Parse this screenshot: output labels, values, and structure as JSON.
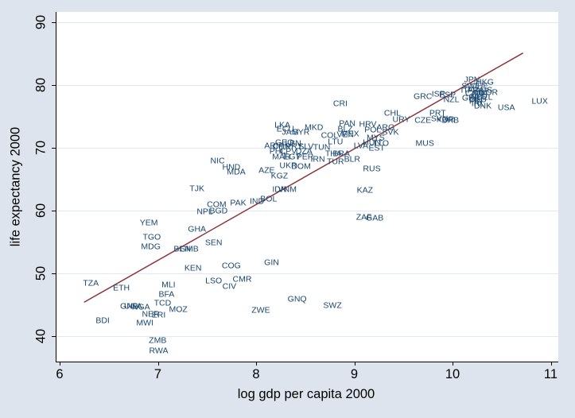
{
  "chart_data": {
    "type": "scatter",
    "title": "",
    "xlabel": "log gdp per capita 2000",
    "ylabel": "life expectancy 2000",
    "xlim": [
      5.96,
      11.07
    ],
    "ylim": [
      35.9,
      91.6
    ],
    "x_ticks": [
      6,
      7,
      8,
      9,
      10,
      11
    ],
    "y_ticks": [
      40,
      50,
      60,
      70,
      80,
      90
    ],
    "grid": "horizontal-only",
    "legend": "none",
    "marker_style": "country-code-text-labels",
    "colors": {
      "background": "#dde4ee",
      "plot_background": "#ffffff",
      "gridline": "#dfe8f5",
      "point_labels": "#1A476F",
      "fit_line": "#90353B",
      "axis": "#000000"
    },
    "fit_line": {
      "x1": 6.24,
      "y1": 45.4,
      "x2": 10.71,
      "y2": 85.1
    },
    "points": [
      {
        "label": "TZA",
        "x": 6.31,
        "y": 48.4
      },
      {
        "label": "ETH",
        "x": 6.62,
        "y": 47.6
      },
      {
        "label": "BDI",
        "x": 6.43,
        "y": 42.4
      },
      {
        "label": "GNB",
        "x": 6.7,
        "y": 44.7
      },
      {
        "label": "UGA",
        "x": 6.74,
        "y": 44.7
      },
      {
        "label": "NGA",
        "x": 6.82,
        "y": 44.6
      },
      {
        "label": "MWI",
        "x": 6.86,
        "y": 42.0
      },
      {
        "label": "ZMB",
        "x": 6.99,
        "y": 39.2
      },
      {
        "label": "RWA",
        "x": 7.0,
        "y": 37.6
      },
      {
        "label": "NER",
        "x": 6.92,
        "y": 43.4
      },
      {
        "label": "ERI",
        "x": 7.0,
        "y": 43.3
      },
      {
        "label": "TCD",
        "x": 7.04,
        "y": 45.2
      },
      {
        "label": "BFA",
        "x": 7.08,
        "y": 46.6
      },
      {
        "label": "MLI",
        "x": 7.1,
        "y": 48.1
      },
      {
        "label": "MOZ",
        "x": 7.2,
        "y": 44.2
      },
      {
        "label": "YEM",
        "x": 6.9,
        "y": 58.0
      },
      {
        "label": "TGO",
        "x": 6.93,
        "y": 55.7
      },
      {
        "label": "MDG",
        "x": 6.92,
        "y": 54.2
      },
      {
        "label": "GHA",
        "x": 7.39,
        "y": 57.0
      },
      {
        "label": "SEN",
        "x": 7.56,
        "y": 54.8
      },
      {
        "label": "BEN",
        "x": 7.24,
        "y": 53.8
      },
      {
        "label": "GMB",
        "x": 7.31,
        "y": 53.8
      },
      {
        "label": "KEN",
        "x": 7.35,
        "y": 50.8
      },
      {
        "label": "COG",
        "x": 7.74,
        "y": 51.1
      },
      {
        "label": "GIN",
        "x": 8.15,
        "y": 51.6
      },
      {
        "label": "LSO",
        "x": 7.56,
        "y": 48.7
      },
      {
        "label": "CMR",
        "x": 7.85,
        "y": 49.0
      },
      {
        "label": "CIV",
        "x": 7.72,
        "y": 47.8
      },
      {
        "label": "ZWE",
        "x": 8.04,
        "y": 44.1
      },
      {
        "label": "GNQ",
        "x": 8.41,
        "y": 45.8
      },
      {
        "label": "SWZ",
        "x": 8.77,
        "y": 44.8
      },
      {
        "label": "COM",
        "x": 7.59,
        "y": 60.9
      },
      {
        "label": "NPL",
        "x": 7.47,
        "y": 59.7
      },
      {
        "label": "BGD",
        "x": 7.61,
        "y": 59.9
      },
      {
        "label": "PAK",
        "x": 7.81,
        "y": 61.2
      },
      {
        "label": "IND",
        "x": 8.0,
        "y": 61.4
      },
      {
        "label": "BOL",
        "x": 8.12,
        "y": 61.8
      },
      {
        "label": "TJK",
        "x": 7.39,
        "y": 63.4
      },
      {
        "label": "NIC",
        "x": 7.6,
        "y": 67.8
      },
      {
        "label": "HND",
        "x": 7.74,
        "y": 66.8
      },
      {
        "label": "MDA",
        "x": 7.79,
        "y": 66.1
      },
      {
        "label": "AZE",
        "x": 8.1,
        "y": 66.3
      },
      {
        "label": "KGZ",
        "x": 8.23,
        "y": 65.4
      },
      {
        "label": "IDN",
        "x": 8.23,
        "y": 63.3
      },
      {
        "label": "VNM",
        "x": 8.31,
        "y": 63.3
      },
      {
        "label": "ARM",
        "x": 8.17,
        "y": 70.3
      },
      {
        "label": "LKA",
        "x": 8.26,
        "y": 73.5
      },
      {
        "label": "ECU",
        "x": 8.29,
        "y": 72.9
      },
      {
        "label": "JAM",
        "x": 8.34,
        "y": 72.4
      },
      {
        "label": "SYR",
        "x": 8.45,
        "y": 72.4
      },
      {
        "label": "MKD",
        "x": 8.58,
        "y": 73.2
      },
      {
        "label": "PAN",
        "x": 8.92,
        "y": 73.8
      },
      {
        "label": "BLZ",
        "x": 8.9,
        "y": 72.9
      },
      {
        "label": "VEN",
        "x": 8.9,
        "y": 72.0
      },
      {
        "label": "GEO",
        "x": 8.28,
        "y": 70.8
      },
      {
        "label": "LBN",
        "x": 8.37,
        "y": 70.6
      },
      {
        "label": "LTU",
        "x": 8.8,
        "y": 70.9
      },
      {
        "label": "CHN",
        "x": 8.25,
        "y": 70.1
      },
      {
        "label": "PRY",
        "x": 8.38,
        "y": 70.1
      },
      {
        "label": "SLV",
        "x": 8.5,
        "y": 70.1
      },
      {
        "label": "TUN",
        "x": 8.66,
        "y": 70.0
      },
      {
        "label": "PHL",
        "x": 8.21,
        "y": 69.4
      },
      {
        "label": "CPV",
        "x": 8.32,
        "y": 69.4
      },
      {
        "label": "DZA",
        "x": 8.48,
        "y": 69.4
      },
      {
        "label": "MAR",
        "x": 8.25,
        "y": 68.5
      },
      {
        "label": "EGY",
        "x": 8.36,
        "y": 68.5
      },
      {
        "label": "PER",
        "x": 8.49,
        "y": 68.5
      },
      {
        "label": "UKR",
        "x": 8.32,
        "y": 67.1
      },
      {
        "label": "DOM",
        "x": 8.45,
        "y": 67.0
      },
      {
        "label": "IRN",
        "x": 8.62,
        "y": 68.1
      },
      {
        "label": "TUR",
        "x": 8.8,
        "y": 67.7
      },
      {
        "label": "THA",
        "x": 8.78,
        "y": 69.0
      },
      {
        "label": "BRA",
        "x": 8.86,
        "y": 69.0
      },
      {
        "label": "COL",
        "x": 8.74,
        "y": 71.9
      },
      {
        "label": "MEX",
        "x": 8.95,
        "y": 72.2
      },
      {
        "label": "LVA",
        "x": 9.06,
        "y": 70.3
      },
      {
        "label": "EST",
        "x": 9.22,
        "y": 69.9
      },
      {
        "label": "BLR",
        "x": 8.97,
        "y": 68.1
      },
      {
        "label": "RUS",
        "x": 9.17,
        "y": 66.6
      },
      {
        "label": "KAZ",
        "x": 9.1,
        "y": 63.2
      },
      {
        "label": "ZAF",
        "x": 9.09,
        "y": 58.9
      },
      {
        "label": "GAB",
        "x": 9.2,
        "y": 58.7
      },
      {
        "label": "CRI",
        "x": 8.85,
        "y": 77.0
      },
      {
        "label": "CHL",
        "x": 9.38,
        "y": 75.4
      },
      {
        "label": "URY",
        "x": 9.47,
        "y": 74.4
      },
      {
        "label": "HRV",
        "x": 9.13,
        "y": 73.7
      },
      {
        "label": "POL",
        "x": 9.18,
        "y": 72.8
      },
      {
        "label": "ARG",
        "x": 9.31,
        "y": 73.2
      },
      {
        "label": "SVK",
        "x": 9.36,
        "y": 72.4
      },
      {
        "label": "MYS",
        "x": 9.21,
        "y": 71.5
      },
      {
        "label": "HUN",
        "x": 9.17,
        "y": 70.8
      },
      {
        "label": "TTO",
        "x": 9.26,
        "y": 70.6
      },
      {
        "label": "MUS",
        "x": 9.71,
        "y": 70.6
      },
      {
        "label": "CZE",
        "x": 9.69,
        "y": 74.3
      },
      {
        "label": "PRT",
        "x": 9.84,
        "y": 75.4
      },
      {
        "label": "SVN",
        "x": 9.86,
        "y": 74.6
      },
      {
        "label": "KOR",
        "x": 9.92,
        "y": 74.4
      },
      {
        "label": "BRB",
        "x": 9.97,
        "y": 74.3
      },
      {
        "label": "GRC",
        "x": 9.69,
        "y": 78.1
      },
      {
        "label": "ISR",
        "x": 9.85,
        "y": 78.5
      },
      {
        "label": "ESP",
        "x": 9.94,
        "y": 78.4
      },
      {
        "label": "NZL",
        "x": 9.98,
        "y": 77.6
      },
      {
        "label": "JPN",
        "x": 10.19,
        "y": 80.8
      },
      {
        "label": "HKG",
        "x": 10.32,
        "y": 80.4
      },
      {
        "label": "SWE",
        "x": 10.18,
        "y": 79.7
      },
      {
        "label": "CHE",
        "x": 10.27,
        "y": 79.7
      },
      {
        "label": "ITA",
        "x": 10.14,
        "y": 79.1
      },
      {
        "label": "FRA",
        "x": 10.23,
        "y": 79.1
      },
      {
        "label": "AUS",
        "x": 10.31,
        "y": 79.1
      },
      {
        "label": "CAN",
        "x": 10.21,
        "y": 78.6
      },
      {
        "label": "AUT",
        "x": 10.28,
        "y": 78.6
      },
      {
        "label": "NOR",
        "x": 10.36,
        "y": 78.7
      },
      {
        "label": "NLD",
        "x": 10.26,
        "y": 78.1
      },
      {
        "label": "BEL",
        "x": 10.32,
        "y": 78.0
      },
      {
        "label": "GBR",
        "x": 10.18,
        "y": 77.8
      },
      {
        "label": "DEU",
        "x": 10.25,
        "y": 77.6
      },
      {
        "label": "FIN",
        "x": 10.23,
        "y": 77.3
      },
      {
        "label": "IRL",
        "x": 10.25,
        "y": 77.0
      },
      {
        "label": "DNK",
        "x": 10.3,
        "y": 76.6
      },
      {
        "label": "USA",
        "x": 10.54,
        "y": 76.3
      },
      {
        "label": "LUX",
        "x": 10.88,
        "y": 77.3
      }
    ]
  }
}
